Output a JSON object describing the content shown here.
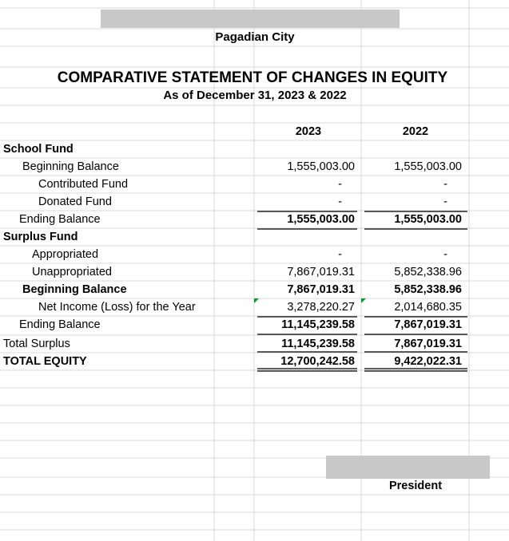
{
  "header": {
    "entity": "Pagadian City",
    "title": "COMPARATIVE STATEMENT OF CHANGES IN EQUITY",
    "subtitle": "As of December 31, 2023 & 2022"
  },
  "table": {
    "columns": [
      "2023",
      "2022"
    ],
    "rows": [
      [
        "School Fund"
      ],
      [
        "Beginning Balance",
        "1,555,003.00",
        "1,555,003.00"
      ],
      [
        "Contributed Fund",
        "-",
        "-"
      ],
      [
        "Donated Fund",
        "-",
        "-"
      ],
      [
        "Ending Balance",
        "1,555,003.00",
        "1,555,003.00"
      ],
      [
        "Surplus Fund"
      ],
      [
        "Appropriated",
        "-",
        "-"
      ],
      [
        "Unappropriated",
        "7,867,019.31",
        "5,852,338.96"
      ],
      [
        "Beginning Balance",
        "7,867,019.31",
        "5,852,338.96"
      ],
      [
        "Net Income (Loss) for the Year",
        "3,278,220.27",
        "2,014,680.35"
      ],
      [
        "Ending Balance",
        "11,145,239.58",
        "7,867,019.31"
      ],
      [
        "Total Surplus",
        "11,145,239.58",
        "7,867,019.31"
      ],
      [
        "TOTAL EQUITY",
        "12,700,242.58",
        "9,422,022.31"
      ]
    ]
  },
  "footer": {
    "signatory": "President"
  }
}
